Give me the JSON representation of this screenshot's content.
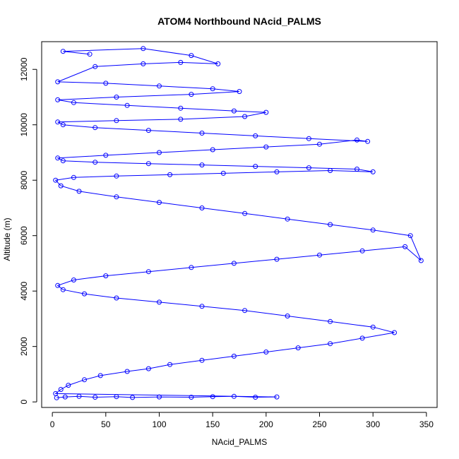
{
  "chart_data": {
    "type": "scatter",
    "connected": true,
    "title": "ATOM4 Northbound NAcid_PALMS",
    "xlabel": "NAcid_PALMS",
    "ylabel": "Altitude (m)",
    "xlim": [
      -10,
      360
    ],
    "ylim": [
      -200,
      13000
    ],
    "xticks": [
      0,
      50,
      100,
      150,
      200,
      250,
      300,
      350
    ],
    "yticks": [
      0,
      2000,
      4000,
      6000,
      8000,
      10000,
      12000
    ],
    "grid": false,
    "legend": "none",
    "series": [
      {
        "color": "#0000ff",
        "marker": "open-circle",
        "points": [
          [
            4,
            150
          ],
          [
            12,
            180
          ],
          [
            25,
            200
          ],
          [
            40,
            170
          ],
          [
            60,
            190
          ],
          [
            75,
            160
          ],
          [
            100,
            180
          ],
          [
            130,
            170
          ],
          [
            150,
            190
          ],
          [
            170,
            200
          ],
          [
            190,
            170
          ],
          [
            210,
            180
          ],
          [
            3,
            300
          ],
          [
            8,
            450
          ],
          [
            15,
            600
          ],
          [
            30,
            800
          ],
          [
            45,
            950
          ],
          [
            70,
            1100
          ],
          [
            90,
            1200
          ],
          [
            110,
            1350
          ],
          [
            140,
            1500
          ],
          [
            170,
            1650
          ],
          [
            200,
            1800
          ],
          [
            230,
            1950
          ],
          [
            260,
            2100
          ],
          [
            290,
            2300
          ],
          [
            320,
            2500
          ],
          [
            300,
            2700
          ],
          [
            260,
            2900
          ],
          [
            220,
            3100
          ],
          [
            180,
            3300
          ],
          [
            140,
            3450
          ],
          [
            100,
            3600
          ],
          [
            60,
            3750
          ],
          [
            30,
            3900
          ],
          [
            10,
            4050
          ],
          [
            5,
            4200
          ],
          [
            20,
            4400
          ],
          [
            50,
            4550
          ],
          [
            90,
            4700
          ],
          [
            130,
            4850
          ],
          [
            170,
            5000
          ],
          [
            210,
            5150
          ],
          [
            250,
            5300
          ],
          [
            290,
            5450
          ],
          [
            330,
            5600
          ],
          [
            345,
            5100
          ],
          [
            335,
            6000
          ],
          [
            300,
            6200
          ],
          [
            260,
            6400
          ],
          [
            220,
            6600
          ],
          [
            180,
            6800
          ],
          [
            140,
            7000
          ],
          [
            100,
            7200
          ],
          [
            60,
            7400
          ],
          [
            25,
            7600
          ],
          [
            8,
            7800
          ],
          [
            3,
            8000
          ],
          [
            20,
            8100
          ],
          [
            60,
            8150
          ],
          [
            110,
            8200
          ],
          [
            160,
            8250
          ],
          [
            210,
            8300
          ],
          [
            260,
            8350
          ],
          [
            300,
            8300
          ],
          [
            285,
            8400
          ],
          [
            240,
            8450
          ],
          [
            190,
            8500
          ],
          [
            140,
            8550
          ],
          [
            90,
            8600
          ],
          [
            40,
            8650
          ],
          [
            10,
            8700
          ],
          [
            5,
            8800
          ],
          [
            50,
            8900
          ],
          [
            100,
            9000
          ],
          [
            150,
            9100
          ],
          [
            200,
            9200
          ],
          [
            250,
            9300
          ],
          [
            285,
            9450
          ],
          [
            295,
            9400
          ],
          [
            240,
            9500
          ],
          [
            190,
            9600
          ],
          [
            140,
            9700
          ],
          [
            90,
            9800
          ],
          [
            40,
            9900
          ],
          [
            10,
            10000
          ],
          [
            5,
            10100
          ],
          [
            60,
            10150
          ],
          [
            120,
            10200
          ],
          [
            180,
            10300
          ],
          [
            200,
            10450
          ],
          [
            170,
            10500
          ],
          [
            120,
            10600
          ],
          [
            70,
            10700
          ],
          [
            20,
            10800
          ],
          [
            5,
            10900
          ],
          [
            60,
            11000
          ],
          [
            130,
            11100
          ],
          [
            175,
            11200
          ],
          [
            150,
            11300
          ],
          [
            100,
            11400
          ],
          [
            50,
            11500
          ],
          [
            5,
            11550
          ],
          [
            40,
            12100
          ],
          [
            85,
            12200
          ],
          [
            120,
            12250
          ],
          [
            155,
            12200
          ],
          [
            130,
            12500
          ],
          [
            85,
            12750
          ],
          [
            10,
            12650
          ],
          [
            35,
            12550
          ]
        ]
      }
    ]
  }
}
